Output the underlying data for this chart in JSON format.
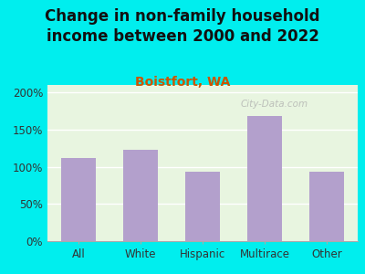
{
  "title": "Change in non-family household\nincome between 2000 and 2022",
  "subtitle": "Boistfort, WA",
  "categories": [
    "All",
    "White",
    "Hispanic",
    "Multirace",
    "Other"
  ],
  "values": [
    112,
    123,
    93,
    168,
    93
  ],
  "bar_color": "#b3a0cc",
  "title_fontsize": 12,
  "subtitle_fontsize": 10,
  "subtitle_color": "#cc5500",
  "title_color": "#111111",
  "background_color": "#00eeee",
  "plot_bg_color": "#e8f5e0",
  "ylim": [
    0,
    210
  ],
  "yticks": [
    0,
    50,
    100,
    150,
    200
  ],
  "xlabel_color": "#333333",
  "ylabel_color": "#333333",
  "watermark": "City-Data.com",
  "grid_color": "#ccddcc"
}
